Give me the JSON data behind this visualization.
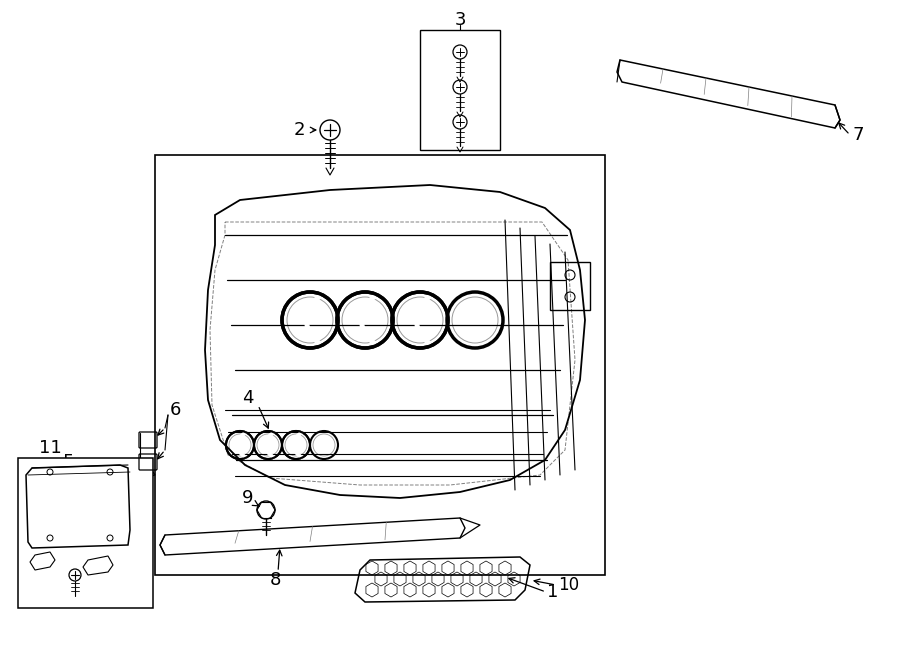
{
  "bg_color": "#ffffff",
  "line_color": "#000000",
  "line_width": 1.0,
  "fig_width": 9.0,
  "fig_height": 6.61,
  "dpi": 100
}
